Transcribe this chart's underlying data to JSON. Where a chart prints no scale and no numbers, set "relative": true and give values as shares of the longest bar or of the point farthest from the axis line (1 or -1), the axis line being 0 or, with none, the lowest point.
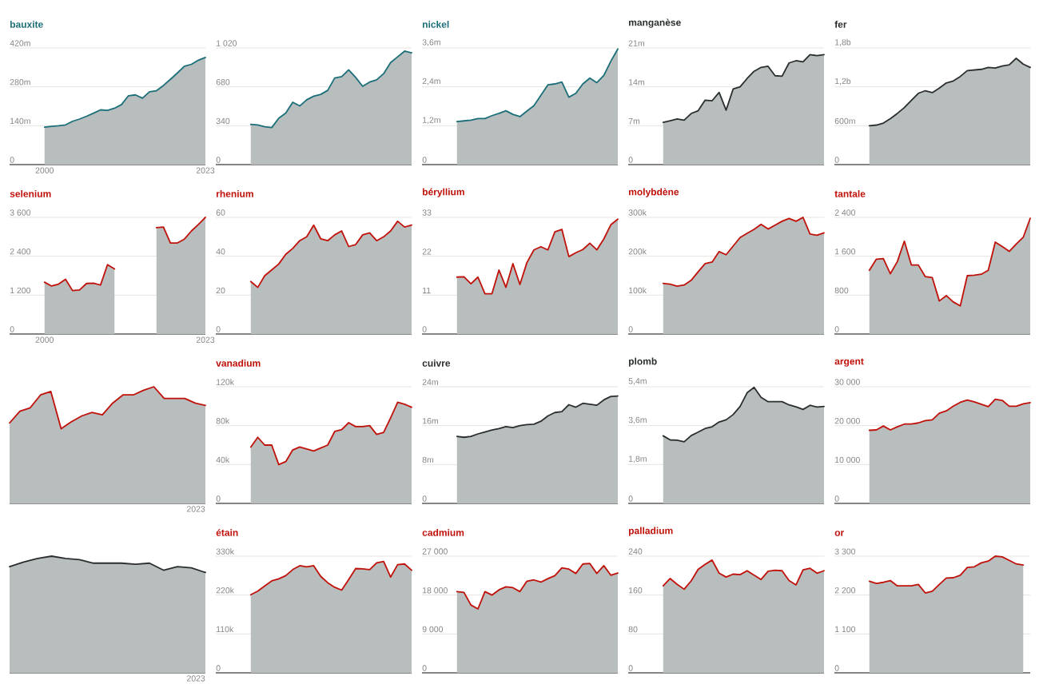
{
  "chart_data": [
    {
      "type": "area",
      "title": "bauxite",
      "color": "#1b6f79",
      "x": [
        2000,
        2001,
        2002,
        2003,
        2004,
        2005,
        2006,
        2007,
        2008,
        2009,
        2010,
        2011,
        2012,
        2013,
        2014,
        2015,
        2016,
        2017,
        2018,
        2019,
        2020,
        2021,
        2022,
        2023
      ],
      "values": [
        135,
        138,
        140,
        143,
        156,
        164,
        174,
        185,
        197,
        195,
        203,
        216,
        248,
        251,
        239,
        262,
        266,
        285,
        307,
        330,
        354,
        361,
        376,
        386
      ],
      "xlim": [
        1995,
        2023
      ],
      "xticks": [
        2000,
        2023
      ],
      "ylim": [
        0,
        420
      ],
      "yticks": [
        0,
        {
          "value": 140,
          "label": "140m"
        },
        {
          "value": 280,
          "label": "280m"
        },
        {
          "value": 420,
          "label": "420m"
        }
      ],
      "grid": "y"
    },
    {
      "type": "area",
      "color": "#1b6f79",
      "categories": [
        null,
        null,
        null,
        null,
        null,
        null,
        null,
        null,
        null,
        null,
        null,
        null,
        null,
        null,
        null,
        null,
        null,
        null,
        null,
        null,
        null,
        null,
        null,
        null
      ],
      "values": [
        352,
        347,
        331,
        324,
        405,
        450,
        545,
        513,
        567,
        598,
        614,
        649,
        757,
        769,
        829,
        762,
        685,
        722,
        741,
        795,
        892,
        942,
        992,
        978
      ],
      "ylim": [
        0,
        1020
      ],
      "yticks": [
        0,
        340,
        680,
        {
          "value": 1020,
          "label": "1 020"
        }
      ],
      "grid": "y",
      "tick_labels": "y"
    },
    {
      "type": "area",
      "title": "nickel",
      "color": "#1b6f79",
      "categories": [
        null,
        null,
        null,
        null,
        null,
        null,
        null,
        null,
        null,
        null,
        null,
        null,
        null,
        null,
        null,
        null,
        null,
        null,
        null,
        null,
        null,
        null,
        null,
        null
      ],
      "values": [
        1.33,
        1.35,
        1.37,
        1.42,
        1.42,
        1.51,
        1.58,
        1.66,
        1.55,
        1.48,
        1.65,
        1.82,
        2.14,
        2.46,
        2.49,
        2.55,
        2.08,
        2.2,
        2.49,
        2.67,
        2.53,
        2.75,
        3.19,
        3.57
      ],
      "ylim": [
        0,
        3.6
      ],
      "yticks": [
        0,
        {
          "value": 1.2,
          "label": "1,2m"
        },
        {
          "value": 2.4,
          "label": "2,4m"
        },
        {
          "value": 3.6,
          "label": "3,6m"
        }
      ],
      "grid": "y",
      "tick_labels": "y"
    },
    {
      "type": "area",
      "title": "manganèse",
      "color": "#2b2e2e",
      "categories": [
        null,
        null,
        null,
        null,
        null,
        null,
        null,
        null,
        null,
        null,
        null,
        null,
        null,
        null,
        null,
        null,
        null,
        null,
        null,
        null,
        null,
        null,
        null,
        null
      ],
      "values": [
        7.6,
        7.9,
        8.2,
        8.0,
        9.2,
        9.7,
        11.6,
        11.5,
        13.0,
        9.8,
        13.6,
        14.0,
        15.5,
        16.8,
        17.5,
        17.7,
        16.0,
        15.9,
        18.3,
        18.7,
        18.5,
        19.8,
        19.6,
        19.8
      ],
      "ylim": [
        0,
        21
      ],
      "yticks": [
        0,
        {
          "value": 7,
          "label": "7m"
        },
        {
          "value": 14,
          "label": "14m"
        },
        {
          "value": 21,
          "label": "21m"
        }
      ],
      "grid": "y",
      "tick_labels": "y"
    },
    {
      "type": "area",
      "title": "fer",
      "color": "#2b2e2e",
      "categories": [
        null,
        null,
        null,
        null,
        null,
        null,
        null,
        null,
        null,
        null,
        null,
        null,
        null,
        null,
        null,
        null,
        null,
        null,
        null,
        null,
        null,
        null,
        null,
        null
      ],
      "values": [
        600000000,
        610000000,
        640000000,
        710000000,
        790000000,
        880000000,
        990000000,
        1100000000,
        1140000000,
        1110000000,
        1180000000,
        1260000000,
        1290000000,
        1360000000,
        1450000000,
        1460000000,
        1470000000,
        1500000000,
        1490000000,
        1520000000,
        1540000000,
        1640000000,
        1550000000,
        1500000000
      ],
      "ylim": [
        0,
        1800000000
      ],
      "yticks": [
        0,
        {
          "value": 600000000,
          "label": "600m"
        },
        {
          "value": 1200000000,
          "label": "1,2b"
        },
        {
          "value": 1800000000,
          "label": "1,8b"
        }
      ],
      "grid": "y",
      "tick_labels": "y"
    },
    {
      "type": "area",
      "title": "selenium",
      "color": "#c0110a",
      "x": [
        2000,
        2001,
        2002,
        2003,
        2004,
        2005,
        2006,
        2007,
        2008,
        2009,
        2010,
        2011,
        2012,
        2013,
        2014,
        2015,
        2016,
        2017,
        2018,
        2019,
        2020,
        2021,
        2022,
        2023
      ],
      "values": [
        1600,
        1480,
        1540,
        1690,
        1340,
        1360,
        1560,
        1570,
        1510,
        2140,
        2010,
        null,
        null,
        null,
        null,
        null,
        3280,
        3300,
        2810,
        2810,
        2930,
        3180,
        3380,
        3600
      ],
      "xlim": [
        1995,
        2023
      ],
      "xticks": [
        2000,
        2023
      ],
      "ylim": [
        0,
        3600
      ],
      "yticks": [
        0,
        {
          "value": 1200,
          "label": "1 200"
        },
        {
          "value": 2400,
          "label": "2 400"
        },
        {
          "value": 3600,
          "label": "3 600"
        }
      ],
      "grid": "y"
    },
    {
      "type": "area",
      "title": "rhenium",
      "color": "#c0110a",
      "categories": [
        null,
        null,
        null,
        null,
        null,
        null,
        null,
        null,
        null,
        null,
        null,
        null,
        null,
        null,
        null,
        null,
        null,
        null,
        null,
        null,
        null,
        null,
        null,
        null
      ],
      "values": [
        27,
        24,
        30,
        33,
        36,
        41,
        44,
        48,
        50,
        56,
        49,
        48,
        51,
        53,
        45,
        46,
        51,
        52,
        48,
        50,
        53,
        58,
        55,
        56
      ],
      "ylim": [
        0,
        60
      ],
      "yticks": [
        0,
        20,
        40,
        60
      ],
      "grid": "y",
      "tick_labels": "y"
    },
    {
      "type": "area",
      "title": "béryllium",
      "color": "#c0110a",
      "categories": [
        null,
        null,
        null,
        null,
        null,
        null,
        null,
        null,
        null,
        null,
        null,
        null,
        null,
        null,
        null,
        null,
        null,
        null,
        null,
        null,
        null,
        null,
        null,
        null
      ],
      "values": [
        16.1,
        16.2,
        14.2,
        16.1,
        11.4,
        11.4,
        18.1,
        13.2,
        19.9,
        14.0,
        20.2,
        23.8,
        24.7,
        23.8,
        28.9,
        29.6,
        21.9,
        23.0,
        23.9,
        25.7,
        23.8,
        26.9,
        30.9,
        32.5
      ],
      "ylim": [
        0,
        33
      ],
      "yticks": [
        0,
        11,
        22,
        33
      ],
      "grid": "y",
      "tick_labels": "y"
    },
    {
      "type": "area",
      "title": "molybdène",
      "color": "#c0110a",
      "categories": [
        null,
        null,
        null,
        null,
        null,
        null,
        null,
        null,
        null,
        null,
        null,
        null,
        null,
        null,
        null,
        null,
        null,
        null,
        null,
        null,
        null,
        null,
        null,
        null
      ],
      "values": [
        130,
        128,
        123,
        126,
        138,
        160,
        181,
        185,
        212,
        204,
        226,
        248,
        259,
        269,
        282,
        270,
        280,
        290,
        297,
        290,
        300,
        257,
        254,
        260
      ],
      "ylim": [
        0,
        300
      ],
      "yticks": [
        0,
        {
          "value": 100,
          "label": "100k"
        },
        {
          "value": 200,
          "label": "200k"
        },
        {
          "value": 300,
          "label": "300k"
        }
      ],
      "grid": "y",
      "tick_labels": "y"
    },
    {
      "type": "area",
      "title": "tantale",
      "color": "#c0110a",
      "categories": [
        null,
        null,
        null,
        null,
        null,
        null,
        null,
        null,
        null,
        null,
        null,
        null,
        null,
        null,
        null,
        null,
        null,
        null,
        null,
        null,
        null,
        null,
        null,
        null
      ],
      "values": [
        1310,
        1540,
        1550,
        1240,
        1490,
        1910,
        1420,
        1420,
        1180,
        1160,
        680,
        790,
        660,
        580,
        1200,
        1210,
        1230,
        1310,
        1890,
        1800,
        1700,
        1850,
        1990,
        2380
      ],
      "ylim": [
        0,
        2400
      ],
      "yticks": [
        0,
        800,
        {
          "value": 1600,
          "label": "1 600"
        },
        {
          "value": 2400,
          "label": "2 400"
        }
      ],
      "grid": "y",
      "tick_labels": "y"
    },
    {
      "type": "area",
      "color": "#c0110a",
      "relative": true,
      "categories": [
        null,
        null,
        null,
        null,
        null,
        null,
        null,
        null,
        null,
        null,
        null,
        null,
        null,
        null,
        null,
        null,
        null,
        null,
        null,
        null
      ],
      "values": [
        0.69,
        0.79,
        0.82,
        0.93,
        0.96,
        0.64,
        0.7,
        0.75,
        0.78,
        0.76,
        0.86,
        0.93,
        0.93,
        0.97,
        1,
        0.9,
        0.9,
        0.9,
        0.86,
        0.84
      ],
      "annotations": [
        "2023"
      ]
    },
    {
      "type": "area",
      "title": "vanadium",
      "color": "#c0110a",
      "categories": [
        null,
        null,
        null,
        null,
        null,
        null,
        null,
        null,
        null,
        null,
        null,
        null,
        null,
        null,
        null,
        null,
        null,
        null,
        null,
        null,
        null,
        null,
        null,
        null
      ],
      "values": [
        58,
        68,
        60,
        60,
        40,
        43,
        55,
        58,
        56,
        54,
        57,
        60,
        74,
        76,
        83,
        79,
        79,
        80,
        71,
        73,
        88,
        104,
        102,
        99
      ],
      "ylim": [
        0,
        120
      ],
      "yticks": [
        0,
        {
          "value": 40,
          "label": "40k"
        },
        {
          "value": 80,
          "label": "80k"
        },
        {
          "value": 120,
          "label": "120k"
        }
      ],
      "grid": "y",
      "tick_labels": "y"
    },
    {
      "type": "area",
      "title": "cuivre",
      "color": "#2b2e2e",
      "categories": [
        null,
        null,
        null,
        null,
        null,
        null,
        null,
        null,
        null,
        null,
        null,
        null,
        null,
        null,
        null,
        null,
        null,
        null,
        null,
        null,
        null,
        null,
        null,
        null
      ],
      "values": [
        13.8,
        13.6,
        13.8,
        14.3,
        14.7,
        15.1,
        15.4,
        15.8,
        15.6,
        16.0,
        16.2,
        16.3,
        16.9,
        18.0,
        18.7,
        18.9,
        20.3,
        19.8,
        20.6,
        20.4,
        20.2,
        21.3,
        22.0,
        22.1
      ],
      "ylim": [
        0,
        24
      ],
      "yticks": [
        0,
        {
          "value": 8,
          "label": "8m"
        },
        {
          "value": 16,
          "label": "16m"
        },
        {
          "value": 24,
          "label": "24m"
        }
      ],
      "grid": "y",
      "tick_labels": "y"
    },
    {
      "type": "area",
      "title": "plomb",
      "color": "#2b2e2e",
      "categories": [
        null,
        null,
        null,
        null,
        null,
        null,
        null,
        null,
        null,
        null,
        null,
        null,
        null,
        null,
        null,
        null,
        null,
        null,
        null,
        null,
        null,
        null,
        null,
        null
      ],
      "values": [
        3.13,
        2.94,
        2.93,
        2.85,
        3.14,
        3.3,
        3.47,
        3.55,
        3.77,
        3.87,
        4.11,
        4.49,
        5.12,
        5.37,
        4.91,
        4.71,
        4.71,
        4.71,
        4.56,
        4.47,
        4.35,
        4.54,
        4.46,
        4.49
      ],
      "ylim": [
        0,
        5.4
      ],
      "yticks": [
        0,
        {
          "value": 1.8,
          "label": "1,8m"
        },
        {
          "value": 3.6,
          "label": "3,6m"
        },
        {
          "value": 5.4,
          "label": "5,4m"
        }
      ],
      "grid": "y",
      "tick_labels": "y"
    },
    {
      "type": "area",
      "title": "argent",
      "color": "#c0110a",
      "categories": [
        null,
        null,
        null,
        null,
        null,
        null,
        null,
        null,
        null,
        null,
        null,
        null,
        null,
        null,
        null,
        null,
        null,
        null,
        null,
        null,
        null,
        null,
        null,
        null
      ],
      "values": [
        18800,
        18900,
        19900,
        18900,
        19700,
        20400,
        20400,
        20700,
        21300,
        21500,
        23200,
        23800,
        25000,
        26000,
        26600,
        26100,
        25500,
        24900,
        26800,
        26500,
        25000,
        25000,
        25600,
        25900
      ],
      "ylim": [
        0,
        30000
      ],
      "yticks": [
        0,
        {
          "value": 10000,
          "label": "10 000"
        },
        {
          "value": 20000,
          "label": "20 000"
        },
        {
          "value": 30000,
          "label": "30 000"
        }
      ],
      "grid": "y",
      "tick_labels": "y"
    },
    {
      "type": "area",
      "color": "#2b2e2e",
      "relative": true,
      "categories": [
        null,
        null,
        null,
        null,
        null,
        null,
        null,
        null,
        null,
        null,
        null,
        null,
        null,
        null,
        null
      ],
      "values": [
        0.91,
        0.95,
        0.98,
        1,
        0.98,
        0.97,
        0.94,
        0.94,
        0.94,
        0.93,
        0.94,
        0.88,
        0.91,
        0.9,
        0.86
      ],
      "annotations": [
        "2023"
      ]
    },
    {
      "type": "area",
      "title": "étain",
      "color": "#c0110a",
      "categories": [
        null,
        null,
        null,
        null,
        null,
        null,
        null,
        null,
        null,
        null,
        null,
        null,
        null,
        null,
        null,
        null,
        null,
        null,
        null,
        null,
        null,
        null,
        null,
        null
      ],
      "values": [
        221,
        231,
        246,
        260,
        266,
        275,
        292,
        303,
        300,
        303,
        273,
        255,
        242,
        234,
        264,
        295,
        294,
        292,
        311,
        315,
        271,
        306,
        308,
        290
      ],
      "ylim": [
        0,
        330
      ],
      "yticks": [
        0,
        {
          "value": 110,
          "label": "110k"
        },
        {
          "value": 220,
          "label": "220k"
        },
        {
          "value": 330,
          "label": "330k"
        }
      ],
      "grid": "y",
      "tick_labels": "y"
    },
    {
      "type": "area",
      "title": "cadmium",
      "color": "#c0110a",
      "categories": [
        null,
        null,
        null,
        null,
        null,
        null,
        null,
        null,
        null,
        null,
        null,
        null,
        null,
        null,
        null,
        null,
        null,
        null,
        null,
        null,
        null,
        null,
        null,
        null
      ],
      "values": [
        18800,
        18600,
        15700,
        14800,
        18800,
        18000,
        19200,
        19900,
        19700,
        18800,
        21200,
        21500,
        21000,
        21800,
        22500,
        24300,
        24000,
        23000,
        25200,
        25300,
        23000,
        24800,
        22600,
        23100
      ],
      "ylim": [
        0,
        27000
      ],
      "yticks": [
        0,
        {
          "value": 9000,
          "label": "9 000"
        },
        {
          "value": 18000,
          "label": "18 000"
        },
        {
          "value": 27000,
          "label": "27 000"
        }
      ],
      "grid": "y",
      "tick_labels": "y"
    },
    {
      "type": "area",
      "title": "palladium",
      "color": "#c0110a",
      "categories": [
        null,
        null,
        null,
        null,
        null,
        null,
        null,
        null,
        null,
        null,
        null,
        null,
        null,
        null,
        null,
        null,
        null,
        null,
        null,
        null,
        null,
        null,
        null,
        null
      ],
      "values": [
        179,
        194,
        182,
        172,
        189,
        213,
        223,
        232,
        205,
        197,
        203,
        202,
        210,
        201,
        192,
        209,
        211,
        210,
        190,
        181,
        212,
        215,
        205,
        210
      ],
      "ylim": [
        0,
        240
      ],
      "yticks": [
        0,
        80,
        160,
        240
      ],
      "grid": "y",
      "tick_labels": "y"
    },
    {
      "type": "area",
      "title": "or",
      "color": "#c0110a",
      "categories": [
        null,
        null,
        null,
        null,
        null,
        null,
        null,
        null,
        null,
        null,
        null,
        null,
        null,
        null,
        null,
        null,
        null,
        null,
        null,
        null,
        null,
        null,
        null,
        null
      ],
      "values": [
        2590,
        2530,
        2560,
        2610,
        2460,
        2460,
        2460,
        2500,
        2260,
        2310,
        2500,
        2680,
        2690,
        2760,
        2980,
        3000,
        3110,
        3160,
        3300,
        3280,
        3180,
        3080,
        3050,
        null
      ],
      "ylim": [
        0,
        3300
      ],
      "yticks": [
        0,
        {
          "value": 1100,
          "label": "1 100"
        },
        {
          "value": 2200,
          "label": "2 200"
        },
        {
          "value": 3300,
          "label": "3 300"
        }
      ],
      "grid": "y",
      "tick_labels": "y"
    }
  ]
}
